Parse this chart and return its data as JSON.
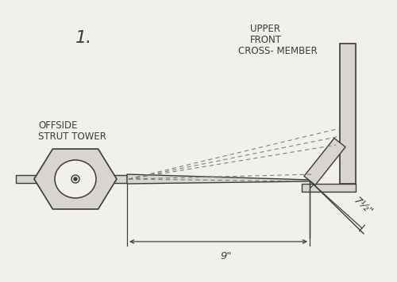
{
  "bg_color": "#f2f0ed",
  "line_color": "#3a3a3a",
  "fill_light": "#d8d5d0",
  "fill_mid": "#c8c5c0",
  "dashed_color": "#777777",
  "title_number": "1.",
  "label_upper": "UPPER",
  "label_front": "FRONT",
  "label_cross": "CROSS- MEMBER",
  "label_offside": "OFFSIDE",
  "label_strut": "STRUT TOWER",
  "label_9": "9\"",
  "label_7half": "7½\"",
  "font_size_label": 8.5,
  "font_size_dim": 9.5,
  "font_size_title": 16
}
